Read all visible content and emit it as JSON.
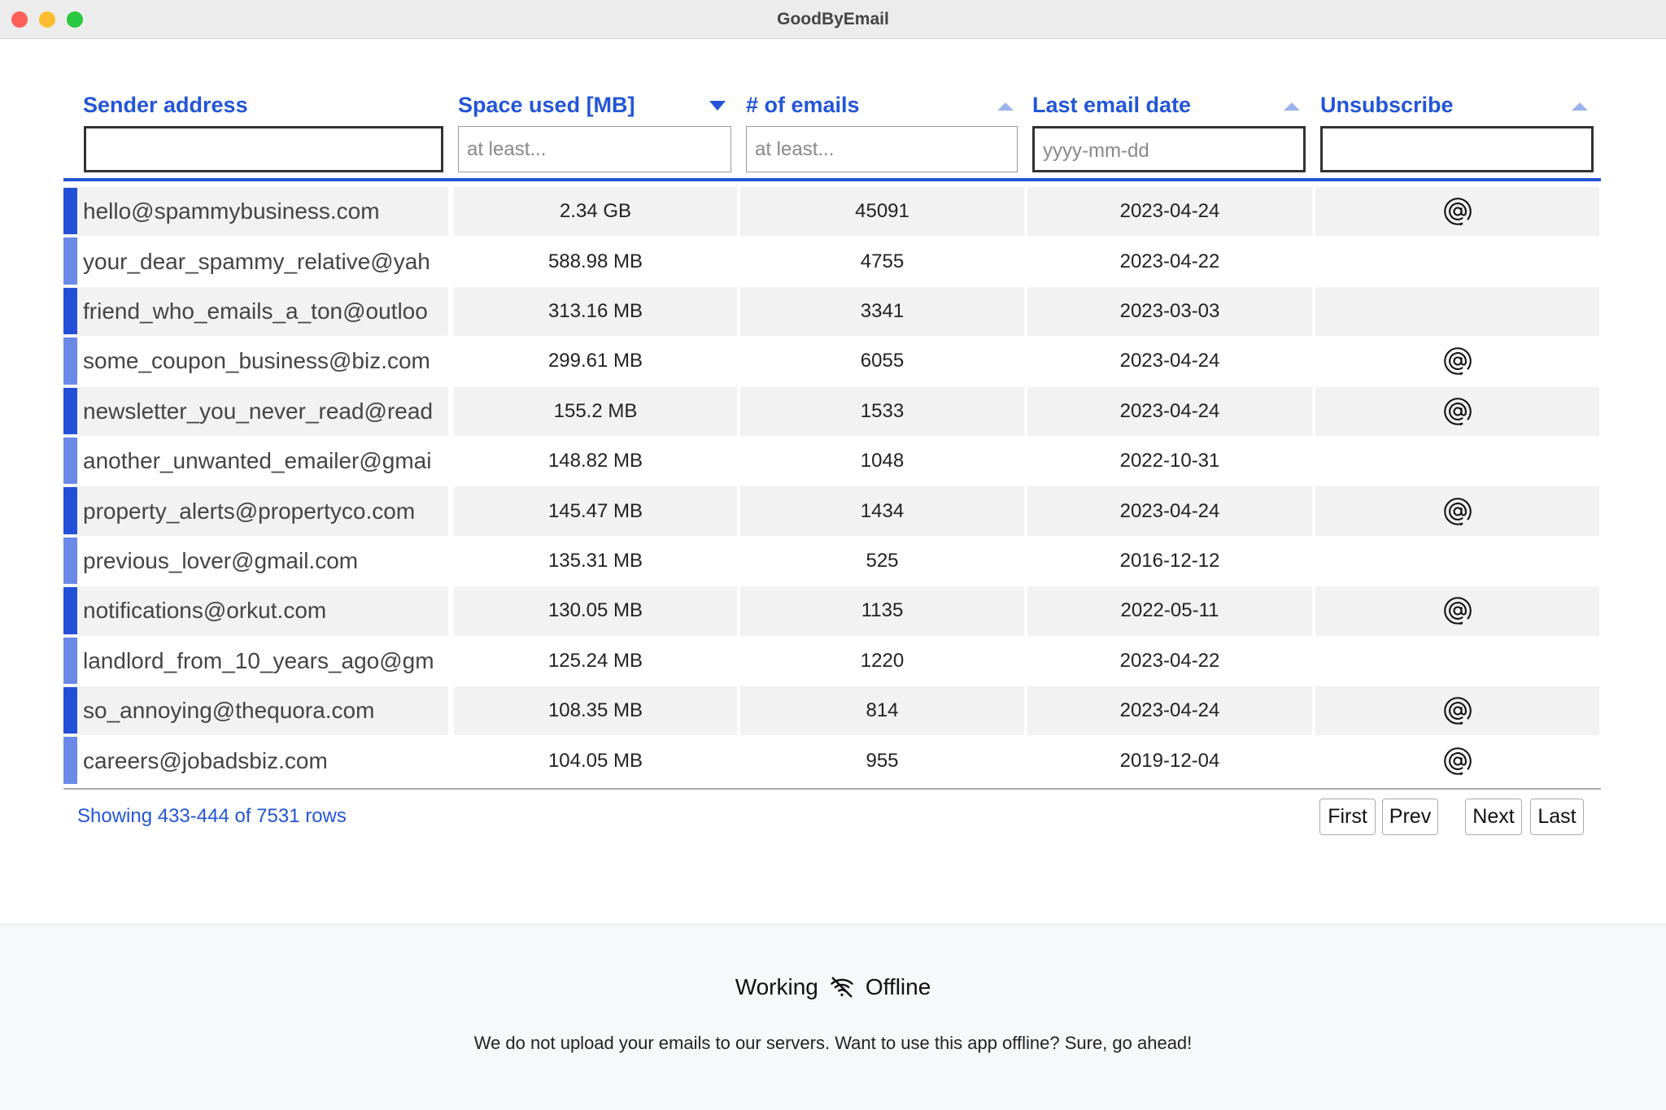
{
  "window": {
    "title": "GoodByEmail"
  },
  "table": {
    "columns": [
      {
        "header": "Sender address",
        "placeholder": ""
      },
      {
        "header": "Space used [MB]",
        "placeholder": "at least..."
      },
      {
        "header": "# of emails",
        "placeholder": "at least..."
      },
      {
        "header": "Last email date",
        "placeholder": "yyyy-mm-dd"
      },
      {
        "header": "Unsubscribe",
        "placeholder": ""
      }
    ],
    "rows": [
      [
        "hello@spammybusiness.com",
        "2.34 GB",
        "45091",
        "2023-04-24",
        true
      ],
      [
        "your_dear_spammy_relative@yah",
        "588.98 MB",
        "4755",
        "2023-04-22",
        false
      ],
      [
        "friend_who_emails_a_ton@outloo",
        "313.16 MB",
        "3341",
        "2023-03-03",
        false
      ],
      [
        "some_coupon_business@biz.com",
        "299.61 MB",
        "6055",
        "2023-04-24",
        true
      ],
      [
        "newsletter_you_never_read@read",
        "155.2 MB",
        "1533",
        "2023-04-24",
        true
      ],
      [
        "another_unwanted_emailer@gmai",
        "148.82 MB",
        "1048",
        "2022-10-31",
        false
      ],
      [
        "property_alerts@propertyco.com",
        "145.47 MB",
        "1434",
        "2023-04-24",
        true
      ],
      [
        "previous_lover@gmail.com",
        "135.31 MB",
        "525",
        "2016-12-12",
        false
      ],
      [
        "notifications@orkut.com",
        "130.05 MB",
        "1135",
        "2022-05-11",
        true
      ],
      [
        "landlord_from_10_years_ago@gm",
        "125.24 MB",
        "1220",
        "2023-04-22",
        false
      ],
      [
        "so_annoying@thequora.com",
        "108.35 MB",
        "814",
        "2023-04-24",
        true
      ],
      [
        "careers@jobadsbiz.com",
        "104.05 MB",
        "955",
        "2019-12-04",
        true
      ]
    ]
  },
  "pagination": {
    "status": "Showing 433-444 of 7531 rows",
    "buttons": [
      "First",
      "Prev",
      "Next",
      "Last"
    ]
  },
  "footer": {
    "heading_left": "Working",
    "heading_right": "Offline",
    "text": "We do not upload your emails to our servers. Want to use this app offline? Sure, go ahead!"
  }
}
